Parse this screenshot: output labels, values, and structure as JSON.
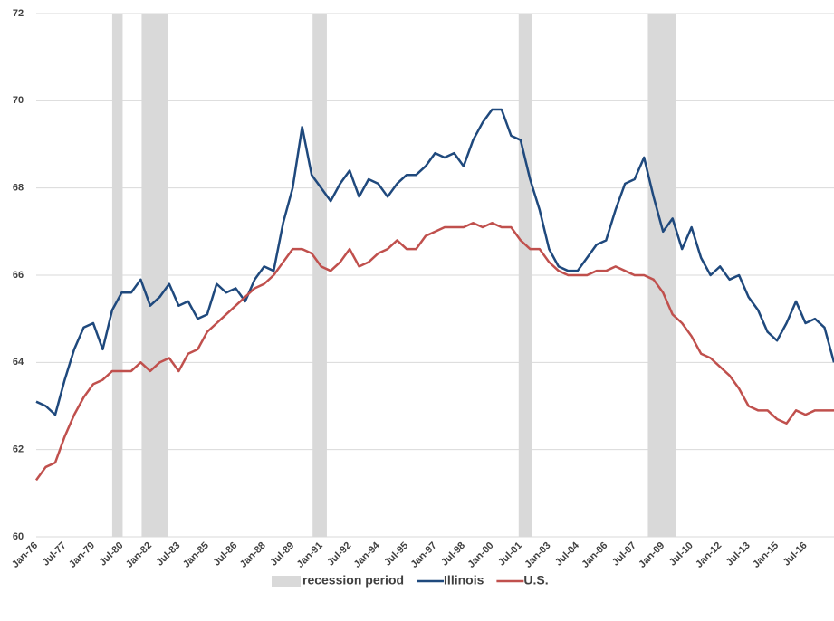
{
  "chart_data": {
    "type": "line",
    "x": [
      1976.0,
      1976.5,
      1977.0,
      1977.5,
      1978.0,
      1978.5,
      1979.0,
      1979.5,
      1980.0,
      1980.5,
      1981.0,
      1981.5,
      1982.0,
      1982.5,
      1983.0,
      1983.5,
      1984.0,
      1984.5,
      1985.0,
      1985.5,
      1986.0,
      1986.5,
      1987.0,
      1987.5,
      1988.0,
      1988.5,
      1989.0,
      1989.5,
      1990.0,
      1990.5,
      1991.0,
      1991.5,
      1992.0,
      1992.5,
      1993.0,
      1993.5,
      1994.0,
      1994.5,
      1995.0,
      1995.5,
      1996.0,
      1996.5,
      1997.0,
      1997.5,
      1998.0,
      1998.5,
      1999.0,
      1999.5,
      2000.0,
      2000.5,
      2001.0,
      2001.5,
      2002.0,
      2002.5,
      2003.0,
      2003.5,
      2004.0,
      2004.5,
      2005.0,
      2005.5,
      2006.0,
      2006.5,
      2007.0,
      2007.5,
      2008.0,
      2008.5,
      2009.0,
      2009.5,
      2010.0,
      2010.5,
      2011.0,
      2011.5,
      2012.0,
      2012.5,
      2013.0,
      2013.5,
      2014.0,
      2014.5,
      2015.0,
      2015.5,
      2016.0,
      2016.5,
      2017.0,
      2017.5,
      2018.0
    ],
    "series": [
      {
        "name": "Illinois",
        "color": "#1f497d",
        "values": [
          63.1,
          63.0,
          62.8,
          63.6,
          64.3,
          64.8,
          64.9,
          64.3,
          65.2,
          65.6,
          65.6,
          65.9,
          65.3,
          65.5,
          65.8,
          65.3,
          65.4,
          65.0,
          65.1,
          65.8,
          65.6,
          65.7,
          65.4,
          65.9,
          66.2,
          66.1,
          67.2,
          68.0,
          69.4,
          68.3,
          68.0,
          67.7,
          68.1,
          68.4,
          67.8,
          68.2,
          68.1,
          67.8,
          68.1,
          68.3,
          68.3,
          68.5,
          68.8,
          68.7,
          68.8,
          68.5,
          69.1,
          69.5,
          69.8,
          69.8,
          69.2,
          69.1,
          68.2,
          67.5,
          66.6,
          66.2,
          66.1,
          66.1,
          66.4,
          66.7,
          66.8,
          67.5,
          68.1,
          68.2,
          68.7,
          67.8,
          67.0,
          67.3,
          66.6,
          67.1,
          66.4,
          66.0,
          66.2,
          65.9,
          66.0,
          65.5,
          65.2,
          64.7,
          64.5,
          64.9,
          65.4,
          64.9,
          65.0,
          64.8,
          64.0
        ]
      },
      {
        "name": "U.S.",
        "color": "#c0504d",
        "values": [
          61.3,
          61.6,
          61.7,
          62.3,
          62.8,
          63.2,
          63.5,
          63.6,
          63.8,
          63.8,
          63.8,
          64.0,
          63.8,
          64.0,
          64.1,
          63.8,
          64.2,
          64.3,
          64.7,
          64.9,
          65.1,
          65.3,
          65.5,
          65.7,
          65.8,
          66.0,
          66.3,
          66.6,
          66.6,
          66.5,
          66.2,
          66.1,
          66.3,
          66.6,
          66.2,
          66.3,
          66.5,
          66.6,
          66.8,
          66.6,
          66.6,
          66.9,
          67.0,
          67.1,
          67.1,
          67.1,
          67.2,
          67.1,
          67.2,
          67.1,
          67.1,
          66.8,
          66.6,
          66.6,
          66.3,
          66.1,
          66.0,
          66.0,
          66.0,
          66.1,
          66.1,
          66.2,
          66.1,
          66.0,
          66.0,
          65.9,
          65.6,
          65.1,
          64.9,
          64.6,
          64.2,
          64.1,
          63.9,
          63.7,
          63.4,
          63.0,
          62.9,
          62.9,
          62.7,
          62.6,
          62.9,
          62.8,
          62.9,
          62.9,
          62.9
        ]
      }
    ],
    "recessions": {
      "name": "recession period",
      "color": "#d9d9d9",
      "spans": [
        [
          1980.0,
          1980.55
        ],
        [
          1981.55,
          1982.95
        ],
        [
          1990.55,
          1991.3
        ],
        [
          2001.4,
          2002.1
        ],
        [
          2008.2,
          2009.7
        ]
      ]
    },
    "xlim": [
      1976,
      2018
    ],
    "xticks": [
      {
        "value": 1976.0,
        "label": "Jan-76"
      },
      {
        "value": 1977.5,
        "label": "Jul-77"
      },
      {
        "value": 1979.0,
        "label": "Jan-79"
      },
      {
        "value": 1980.5,
        "label": "Jul-80"
      },
      {
        "value": 1982.0,
        "label": "Jan-82"
      },
      {
        "value": 1983.5,
        "label": "Jul-83"
      },
      {
        "value": 1985.0,
        "label": "Jan-85"
      },
      {
        "value": 1986.5,
        "label": "Jul-86"
      },
      {
        "value": 1988.0,
        "label": "Jan-88"
      },
      {
        "value": 1989.5,
        "label": "Jul-89"
      },
      {
        "value": 1991.0,
        "label": "Jan-91"
      },
      {
        "value": 1992.5,
        "label": "Jul-92"
      },
      {
        "value": 1994.0,
        "label": "Jan-94"
      },
      {
        "value": 1995.5,
        "label": "Jul-95"
      },
      {
        "value": 1997.0,
        "label": "Jan-97"
      },
      {
        "value": 1998.5,
        "label": "Jul-98"
      },
      {
        "value": 2000.0,
        "label": "Jan-00"
      },
      {
        "value": 2001.5,
        "label": "Jul-01"
      },
      {
        "value": 2003.0,
        "label": "Jan-03"
      },
      {
        "value": 2004.5,
        "label": "Jul-04"
      },
      {
        "value": 2006.0,
        "label": "Jan-06"
      },
      {
        "value": 2007.5,
        "label": "Jul-07"
      },
      {
        "value": 2009.0,
        "label": "Jan-09"
      },
      {
        "value": 2010.5,
        "label": "Jul-10"
      },
      {
        "value": 2012.0,
        "label": "Jan-12"
      },
      {
        "value": 2013.5,
        "label": "Jul-13"
      },
      {
        "value": 2015.0,
        "label": "Jan-15"
      },
      {
        "value": 2016.5,
        "label": "Jul-16"
      }
    ],
    "ylim": [
      60,
      72
    ],
    "yticks": [
      60,
      62,
      64,
      66,
      68,
      70,
      72
    ],
    "grid": true
  }
}
